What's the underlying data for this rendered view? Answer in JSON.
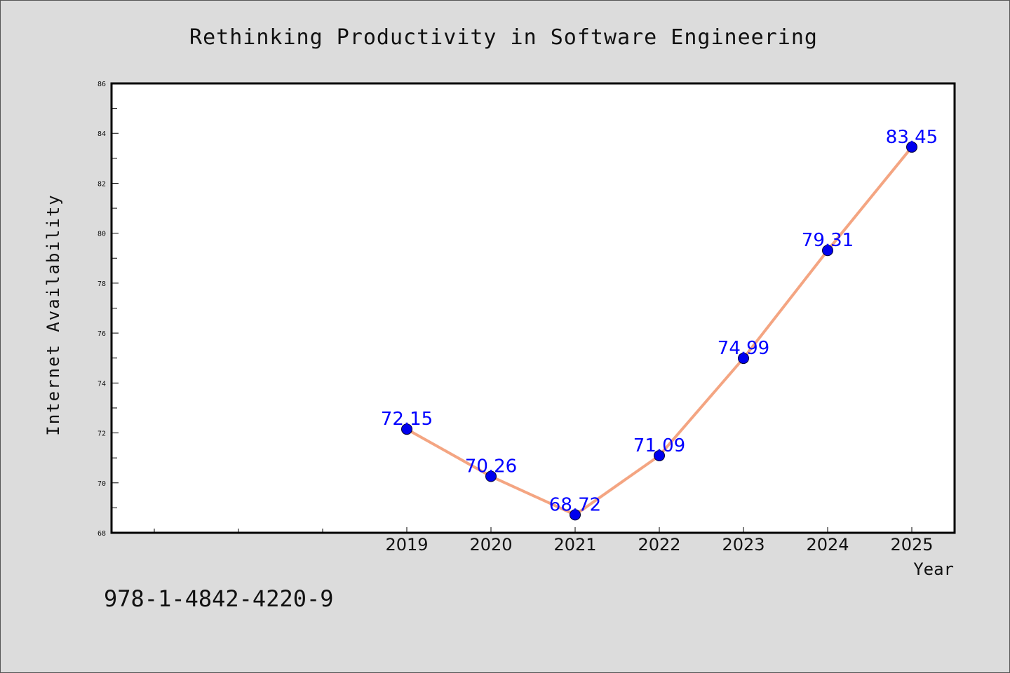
{
  "chart_data": {
    "type": "line",
    "title": "Rethinking Productivity in Software Engineering",
    "xlabel": "Year",
    "ylabel": "Internet Availability",
    "categories": [
      "2019",
      "2020",
      "2021",
      "2022",
      "2023",
      "2024",
      "2025"
    ],
    "series": [
      {
        "values": [
          72.15,
          70.26,
          68.72,
          71.09,
          74.99,
          79.31,
          83.45
        ]
      }
    ],
    "data_labels": [
      "72.15",
      "70.26",
      "68.72",
      "71.09",
      "74.99",
      "79.31",
      "83.45"
    ],
    "y_ticks": [
      "68",
      "70",
      "72",
      "74",
      "76",
      "78",
      "80",
      "82",
      "84",
      "86"
    ],
    "ylim": [
      68,
      86
    ],
    "grid": false,
    "legend": "none",
    "colors": {
      "line": "#f4a582",
      "marker": "#0000ee",
      "label": "#0000ff",
      "background": "#dcdcdc"
    }
  },
  "footer": {
    "isbn": "978-1-4842-4220-9"
  }
}
